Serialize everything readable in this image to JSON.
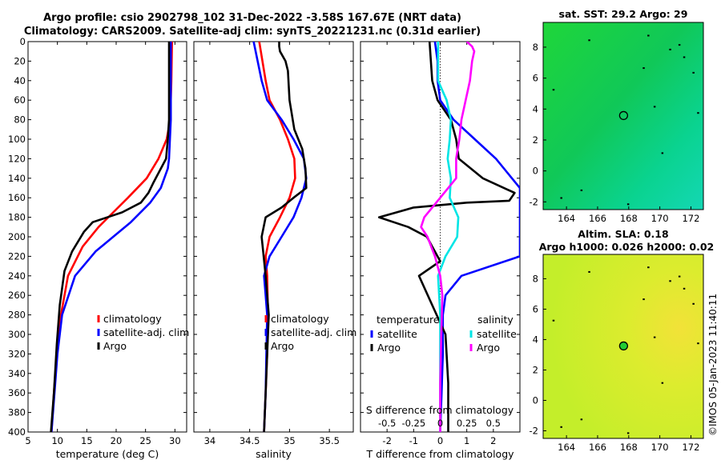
{
  "header": {
    "title_line1": "Argo profile: csio 2902798_102 31-Dec-2022 -3.58S 167.67E (NRT data)",
    "title_line2": "Climatology: CARS2009. Satellite-adj clim: synTS_20221231.nc (0.31d earlier)"
  },
  "map_sst": {
    "title": "sat. SST: 29.2 Argo: 29"
  },
  "map_sla": {
    "title_line1": "Altim. SLA: 0.18",
    "title_line2": "Argo h1000: 0.026 h2000: 0.02"
  },
  "credit": "©IMOS 05-Jan-2023 11:40:11",
  "colors": {
    "climatology": "#ff0000",
    "satellite": "#0000ff",
    "argo": "#000000",
    "sal_satellite": "#00e5e5",
    "sal_argo": "#ff00ff"
  },
  "chart_data": [
    {
      "type": "line",
      "name": "temperature-profile",
      "xlabel": "temperature (deg C)",
      "ylabel": "",
      "xlim": [
        5,
        32
      ],
      "ylim": [
        0,
        400
      ],
      "xticks": [
        "5",
        "10",
        "15",
        "20",
        "25",
        "30"
      ],
      "yticks": [
        "0",
        "20",
        "40",
        "60",
        "80",
        "100",
        "120",
        "140",
        "160",
        "180",
        "200",
        "220",
        "240",
        "260",
        "280",
        "300",
        "320",
        "340",
        "360",
        "380",
        "400"
      ],
      "legend": [
        "climatology",
        "satellite-adj. clim",
        "Argo"
      ],
      "series": [
        {
          "name": "climatology",
          "depth": [
            0,
            40,
            80,
            100,
            120,
            140,
            160,
            175,
            190,
            210,
            240,
            280,
            320,
            360,
            400
          ],
          "values": [
            29.5,
            29.4,
            29.2,
            28.6,
            27.2,
            25.2,
            22.0,
            19.5,
            17.0,
            14.3,
            11.8,
            10.6,
            9.9,
            9.4,
            9.0
          ]
        },
        {
          "name": "satellite-adj. clim",
          "depth": [
            0,
            40,
            80,
            120,
            130,
            150,
            165,
            185,
            200,
            215,
            240,
            280,
            320,
            360,
            400
          ],
          "values": [
            29.3,
            29.3,
            29.3,
            29.0,
            28.8,
            27.6,
            25.8,
            22.5,
            19.5,
            16.5,
            13.0,
            10.8,
            10.0,
            9.5,
            9.0
          ]
        },
        {
          "name": "Argo",
          "depth": [
            0,
            80,
            100,
            120,
            145,
            155,
            165,
            175,
            185,
            195,
            215,
            235,
            270,
            310,
            360,
            400
          ],
          "values": [
            29.0,
            29.0,
            28.8,
            28.5,
            26.3,
            25.5,
            24.2,
            21.0,
            16.0,
            14.5,
            12.5,
            11.2,
            10.4,
            9.9,
            9.4,
            8.9
          ]
        }
      ]
    },
    {
      "type": "line",
      "name": "salinity-profile",
      "xlabel": "salinity",
      "xlim": [
        33.8,
        35.8
      ],
      "ylim": [
        0,
        400
      ],
      "xticks": [
        "34",
        "34.5",
        "35",
        "35.5"
      ],
      "legend": [
        "climatology",
        "satellite-adj. clim",
        "Argo"
      ],
      "series": [
        {
          "name": "climatology",
          "depth": [
            0,
            20,
            40,
            60,
            80,
            100,
            120,
            140,
            160,
            180,
            200,
            220,
            240,
            280,
            320,
            360,
            400
          ],
          "values": [
            34.62,
            34.66,
            34.7,
            34.75,
            34.88,
            34.98,
            35.06,
            35.07,
            35.0,
            34.88,
            34.75,
            34.7,
            34.72,
            34.73,
            34.72,
            34.7,
            34.68
          ]
        },
        {
          "name": "satellite-adj. clim",
          "depth": [
            0,
            20,
            40,
            60,
            80,
            100,
            120,
            140,
            160,
            180,
            200,
            220,
            240,
            260,
            280,
            320,
            360,
            400
          ],
          "values": [
            34.55,
            34.6,
            34.65,
            34.72,
            34.9,
            35.05,
            35.18,
            35.21,
            35.15,
            35.05,
            34.9,
            34.75,
            34.68,
            34.7,
            34.72,
            34.71,
            34.7,
            34.68
          ]
        },
        {
          "name": "Argo",
          "depth": [
            0,
            5,
            10,
            20,
            30,
            60,
            90,
            110,
            130,
            150,
            160,
            170,
            180,
            200,
            240,
            280,
            320,
            360,
            400
          ],
          "values": [
            34.87,
            34.87,
            34.88,
            34.95,
            34.98,
            35.0,
            35.06,
            35.16,
            35.2,
            35.21,
            35.05,
            34.9,
            34.7,
            34.65,
            34.7,
            34.74,
            34.72,
            34.7,
            34.68
          ]
        }
      ]
    },
    {
      "type": "line",
      "name": "difference-profile",
      "xlabel": "T difference from climatology",
      "top_label": "S difference from climatology",
      "xlim": [
        -3,
        3
      ],
      "ylim": [
        0,
        400
      ],
      "xticks": [
        "-2",
        "-1",
        "0",
        "1",
        "2"
      ],
      "top_xticks": [
        "-0.5",
        "-0.25",
        "0",
        "0.25",
        "0.5"
      ],
      "legend_temperature_title": "temperature",
      "legend_salinity_title": "salinity",
      "legend_temperature": [
        "satellite",
        "Argo"
      ],
      "legend_salinity": [
        "satellite",
        "Argo"
      ],
      "series": [
        {
          "name": "temperature satellite",
          "depth": [
            0,
            20,
            40,
            60,
            80,
            100,
            120,
            140,
            150,
            170,
            190,
            210,
            220,
            240,
            260,
            280,
            300,
            320,
            360,
            400
          ],
          "values": [
            -0.2,
            -0.1,
            -0.1,
            0.0,
            0.5,
            1.3,
            2.1,
            2.7,
            3.0,
            3.0,
            3.0,
            3.0,
            3.0,
            0.8,
            0.2,
            0.1,
            0.1,
            0.1,
            0.05,
            0.0
          ]
        },
        {
          "name": "temperature Argo",
          "depth": [
            0,
            40,
            60,
            80,
            100,
            120,
            140,
            155,
            163,
            165,
            170,
            180,
            190,
            200,
            210,
            225,
            240,
            270,
            300,
            350,
            400
          ],
          "values": [
            -0.4,
            -0.3,
            -0.1,
            0.4,
            0.6,
            0.7,
            1.6,
            2.8,
            2.6,
            1.0,
            -1.0,
            -2.3,
            -1.2,
            -0.5,
            -0.3,
            0.0,
            -0.8,
            -0.3,
            0.2,
            0.3,
            0.3
          ]
        },
        {
          "name": "salinity satellite",
          "depth": [
            0,
            20,
            40,
            60,
            80,
            100,
            120,
            140,
            160,
            180,
            200,
            220,
            240,
            280,
            320,
            360,
            400
          ],
          "values": [
            -0.02,
            -0.02,
            -0.02,
            0.06,
            0.1,
            0.09,
            0.07,
            0.1,
            0.09,
            0.17,
            0.16,
            0.05,
            -0.02,
            0.0,
            0.0,
            0.0,
            0.0
          ]
        },
        {
          "name": "salinity Argo",
          "depth": [
            0,
            5,
            10,
            20,
            40,
            60,
            80,
            100,
            120,
            140,
            160,
            180,
            190,
            200,
            220,
            240,
            260,
            300,
            350,
            400
          ],
          "values": [
            0.25,
            0.3,
            0.32,
            0.3,
            0.28,
            0.24,
            0.2,
            0.18,
            0.15,
            0.15,
            0.0,
            -0.15,
            -0.18,
            -0.12,
            -0.05,
            0.0,
            0.02,
            0.01,
            0.0,
            0.0
          ]
        }
      ]
    },
    {
      "type": "heatmap",
      "name": "sst-map",
      "xlim": [
        162.5,
        172.8
      ],
      "ylim": [
        -2.5,
        9.6
      ],
      "xticks": [
        "164",
        "166",
        "168",
        "170",
        "172"
      ],
      "yticks": [
        "-2",
        "0",
        "2",
        "4",
        "6",
        "8"
      ],
      "marker": {
        "lon": 167.67,
        "lat": 3.58
      }
    },
    {
      "type": "heatmap",
      "name": "sla-map",
      "xlim": [
        162.5,
        172.8
      ],
      "ylim": [
        -2.5,
        9.6
      ],
      "xticks": [
        "164",
        "166",
        "168",
        "170",
        "172"
      ],
      "yticks": [
        "-2",
        "0",
        "2",
        "4",
        "6",
        "8"
      ],
      "marker": {
        "lon": 167.67,
        "lat": 3.58
      }
    }
  ]
}
